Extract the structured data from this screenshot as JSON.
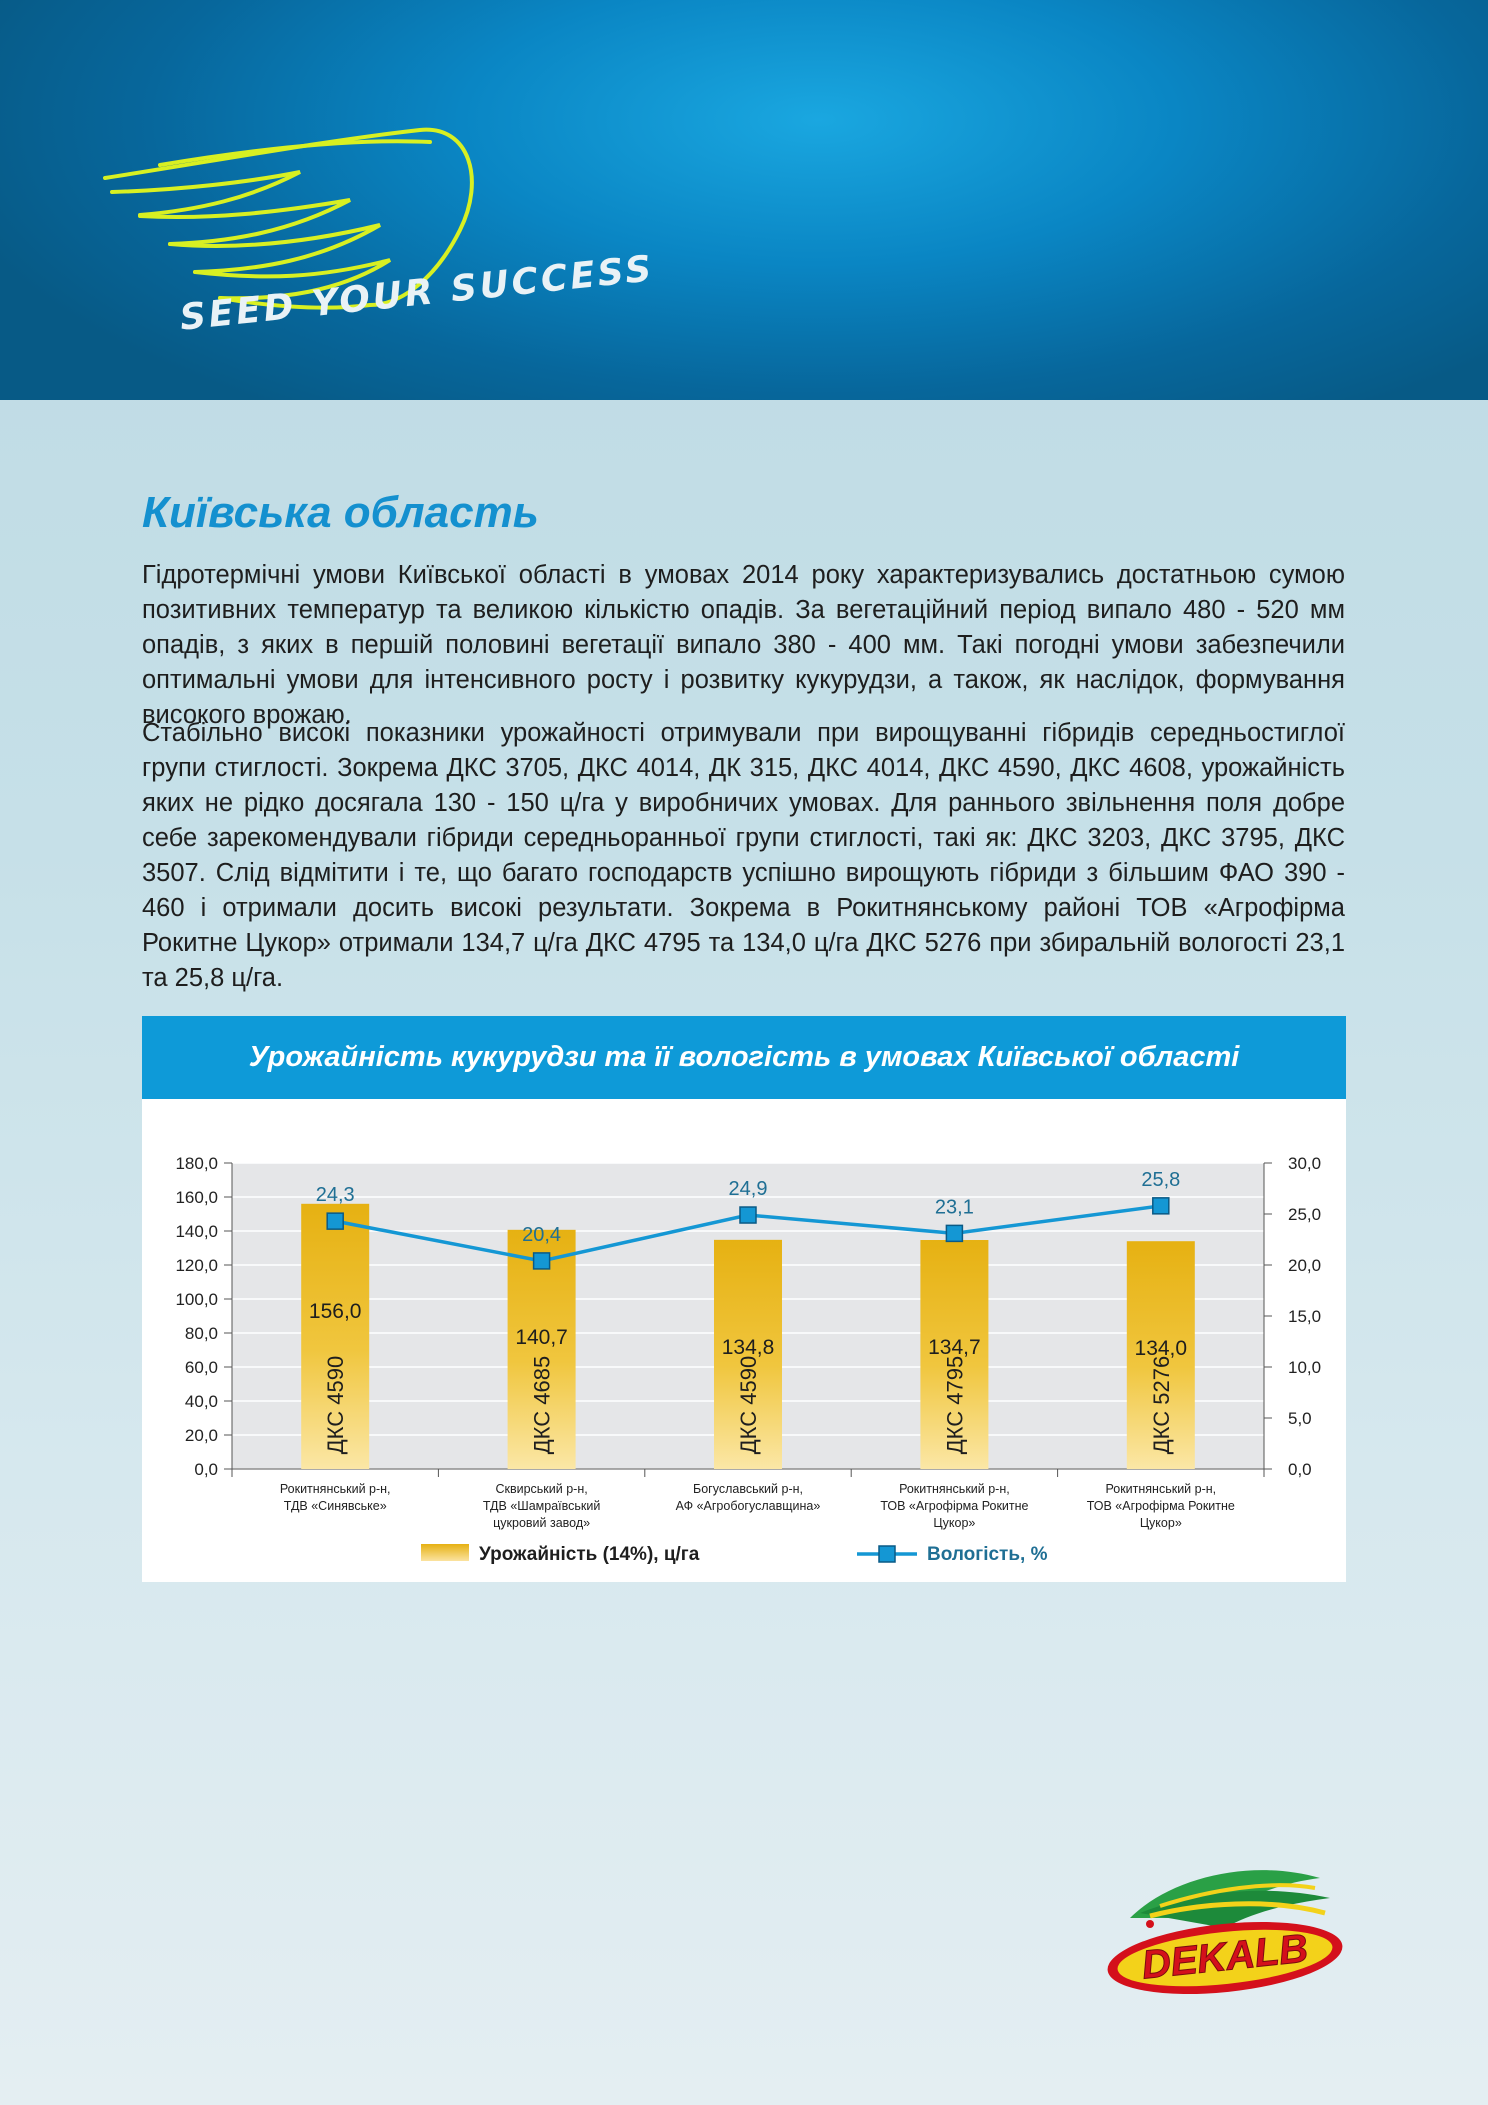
{
  "header": {
    "slogan": "SEED YOUR SUCCESS",
    "colors": {
      "dark_blue": "#07679c",
      "light_blue": "#1aa7e0",
      "wing": "#d8f022"
    }
  },
  "region_title": "Київська область",
  "paragraphs": [
    "Гідротермічні умови Київської області в умовах 2014 року характеризувались достатньою сумою позитивних температур та великою кількістю опадів. За вегетаційний період випало 480 - 520 мм опадів, з яких в першій половині вегетації випало 380 - 400 мм. Такі погодні умови забезпечили оптимальні умови для інтенсивного росту і розвитку кукурудзи, а також, як наслідок, формування високого врожаю.",
    "Стабільно високі показники урожайності отримували при вирощуванні гібридів середньостиглої групи стиглості. Зокрема ДКС 3705, ДКС 4014, ДК 315, ДКС 4014, ДКС 4590, ДКС 4608, урожайність яких не рідко досягала 130 - 150 ц/га у виробничих умовах. Для раннього звільнення поля добре себе зарекомендували гібриди середньоранньої групи стиглості, такі як: ДКС 3203, ДКС 3795, ДКС 3507. Слід відмітити і те, що багато господарств успішно вирощують гібриди з більшим ФАО 390 - 460 і отримали досить високі результати. Зокрема в Рокитнянському районі ТОВ «Агрофірма Рокитне Цукор» отримали 134,7 ц/га ДКС 4795 та 134,0 ц/га ДКС 5276 при збиральній вологості 23,1 та 25,8 ц/га."
  ],
  "chart_data": {
    "type": "bar+line",
    "title": "Урожайність кукурудзи та її вологість в умовах Київської області",
    "categories": [
      [
        "Рокитнянський р-н,",
        "ТДВ «Синявське»"
      ],
      [
        "Сквирський р-н,",
        "ТДВ «Шамраївський",
        "цукровий завод»"
      ],
      [
        "Богуславський р-н,",
        "АФ «Агробогуславщина»"
      ],
      [
        "Рокитнянський р-н,",
        "ТОВ «Агрофірма Рокитне",
        "Цукор»"
      ],
      [
        "Рокитнянський р-н,",
        "ТОВ «Агрофірма Рокитне",
        "Цукор»"
      ]
    ],
    "hybrids": [
      "ДКС 4590",
      "ДКС 4685",
      "ДКС 4590",
      "ДКС 4795",
      "ДКС 5276"
    ],
    "series": [
      {
        "name": "Урожайність (14%), ц/га",
        "type": "bar",
        "axis": "left",
        "values": [
          156.0,
          140.7,
          134.8,
          134.7,
          134.0
        ],
        "labels": [
          "156,0",
          "140,7",
          "134,8",
          "134,7",
          "134,0"
        ],
        "color": "#e8b415"
      },
      {
        "name": "Вологість, %",
        "type": "line",
        "axis": "right",
        "values": [
          24.3,
          20.4,
          24.9,
          23.1,
          25.8
        ],
        "labels": [
          "24,3",
          "20,4",
          "24,9",
          "23,1",
          "25,8"
        ],
        "color": "#1497d4"
      }
    ],
    "y_left": {
      "min": 0,
      "max": 180,
      "ticks": [
        "0,0",
        "20,0",
        "40,0",
        "60,0",
        "80,0",
        "100,0",
        "120,0",
        "140,0",
        "160,0",
        "180,0"
      ]
    },
    "y_right": {
      "min": 0,
      "max": 30,
      "ticks": [
        "0,0",
        "5,0",
        "10,0",
        "15,0",
        "20,0",
        "25,0",
        "30,0"
      ]
    },
    "grid": true,
    "legend": "bottom"
  },
  "logo": {
    "text": "DEKALB",
    "colors": {
      "red": "#d4101b",
      "yellow": "#f3d21a",
      "green": "#2aa046"
    }
  }
}
